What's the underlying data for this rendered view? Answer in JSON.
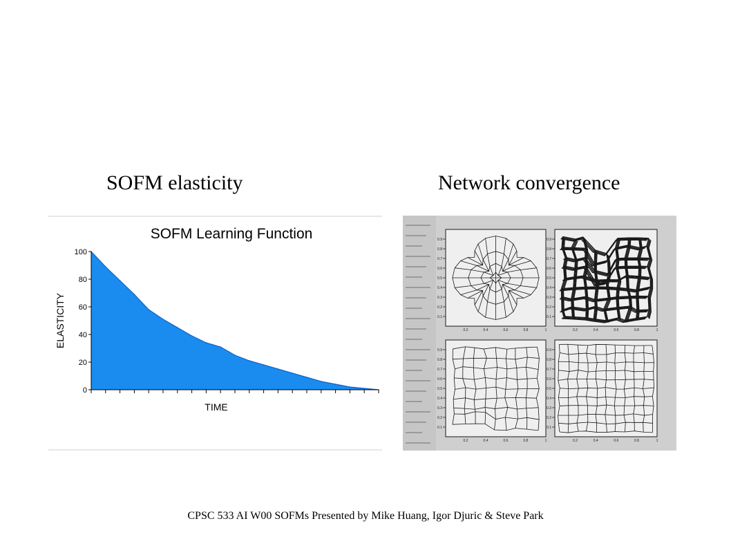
{
  "slide": {
    "heading_left": "SOFM elasticity",
    "heading_right": "Network convergence",
    "footer": "CPSC 533 AI W00 SOFMs Presented by Mike Huang, Igor Djuric & Steve Park"
  },
  "chart_data": {
    "type": "area",
    "title": "SOFM Learning Function",
    "xlabel": "TIME",
    "ylabel": "ELASTICITY",
    "ylim": [
      0,
      100
    ],
    "yticks": [
      "0",
      "20",
      "40",
      "60",
      "80",
      "100"
    ],
    "grid": false,
    "x": [
      0,
      1,
      2,
      3,
      4,
      5,
      6,
      7,
      8,
      9,
      10,
      11,
      12,
      13,
      14,
      15,
      16,
      17,
      18,
      19,
      20
    ],
    "values": [
      100,
      89,
      79,
      69,
      58,
      51,
      45,
      39,
      34,
      31,
      25,
      21,
      18,
      15,
      12,
      9,
      6,
      4,
      2,
      1,
      0
    ],
    "fill_color": "#1a8cf0",
    "stroke_color": "#1261c9"
  },
  "scan": {
    "ticks": [
      "0.2",
      "0.4",
      "0.6",
      "0.8",
      "1"
    ],
    "left_ticks": [
      "0.1",
      "0.2",
      "0.3",
      "0.4",
      "0.5",
      "0.6",
      "0.7",
      "0.8",
      "0.9"
    ],
    "background": "#cfcfcf"
  }
}
